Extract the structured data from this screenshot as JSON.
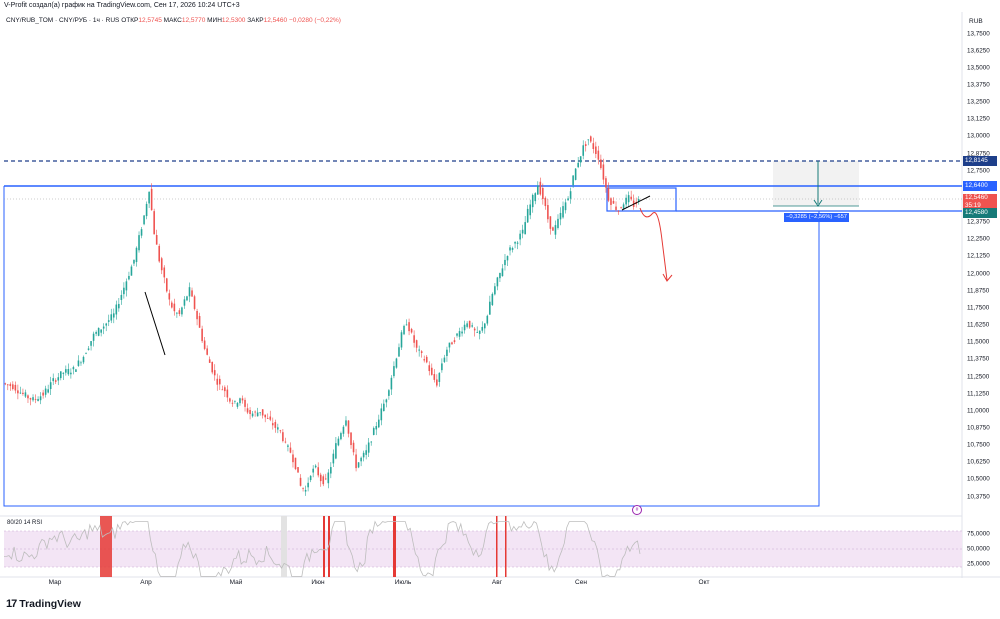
{
  "header": {
    "credit": "V-Profit создал(а) график на TradingView.com, Сен 17, 2026 10:24 UTC+3",
    "symbol": "CNY/RUB_TOM · CNY/РУБ · 1ч · RUS",
    "open_label": "ОТКР",
    "open_value": "12,5745",
    "high_label": "МАКС",
    "high_value": "12,5770",
    "low_label": "МИН",
    "low_value": "12,5300",
    "close_label": "ЗАКР",
    "close_value": "12,5460",
    "change": "−0,0280 (−0,22%)"
  },
  "currency": "RUB",
  "price_tags": {
    "dashed_level": "12,8145",
    "resistance": "12,6400",
    "last_price": "12,5460",
    "countdown": "35:19",
    "support": "12,4580"
  },
  "measure_label": "−0,3285 (−2,56%) −657",
  "marker_label": "#",
  "rsi": {
    "label": "80/20 14 RSI",
    "ticks": [
      "75,0000",
      "50,0000",
      "25,0000"
    ]
  },
  "logo": {
    "mark": "17",
    "text": "TradingView"
  },
  "colors": {
    "up": "#26a69a",
    "down": "#ef5350",
    "level_blue": "#2962ff",
    "dashed_blue": "#1e3f8a",
    "rsi_band": "#f3e5f5",
    "annotation": "#e53935"
  },
  "chart_data": {
    "type": "candlestick",
    "ylabel": "RUB",
    "y_ticks": [
      "13,7500",
      "13,6250",
      "13,5000",
      "13,3750",
      "13,2500",
      "13,1250",
      "13,0000",
      "12,8750",
      "12,7500",
      "12,6250",
      "12,5000",
      "12,3750",
      "12,2500",
      "12,1250",
      "12,0000",
      "11,8750",
      "11,7500",
      "11,6250",
      "11,5000",
      "11,3750",
      "11,2500",
      "11,1250",
      "11,0000",
      "10,8750",
      "10,7500",
      "10,6250",
      "10,5000",
      "10,3750"
    ],
    "ylim": [
      10.32,
      13.8
    ],
    "x_ticks": [
      "Мар",
      "Апр",
      "Май",
      "Июн",
      "Июль",
      "Авг",
      "Сен",
      "Окт"
    ],
    "price_path": [
      [
        0,
        11.2
      ],
      [
        4,
        11.18
      ],
      [
        8,
        11.12
      ],
      [
        12,
        11.08
      ],
      [
        16,
        11.12
      ],
      [
        20,
        11.22
      ],
      [
        24,
        11.28
      ],
      [
        28,
        11.3
      ],
      [
        32,
        11.4
      ],
      [
        36,
        11.55
      ],
      [
        40,
        11.62
      ],
      [
        44,
        11.7
      ],
      [
        48,
        11.9
      ],
      [
        52,
        12.1
      ],
      [
        56,
        12.42
      ],
      [
        58,
        12.62
      ],
      [
        60,
        12.3
      ],
      [
        62,
        12.1
      ],
      [
        64,
        11.95
      ],
      [
        66,
        11.8
      ],
      [
        68,
        11.72
      ],
      [
        70,
        11.7
      ],
      [
        72,
        11.8
      ],
      [
        74,
        11.88
      ],
      [
        76,
        11.75
      ],
      [
        78,
        11.6
      ],
      [
        80,
        11.45
      ],
      [
        82,
        11.35
      ],
      [
        84,
        11.25
      ],
      [
        86,
        11.18
      ],
      [
        88,
        11.15
      ],
      [
        90,
        11.08
      ],
      [
        92,
        11.05
      ],
      [
        94,
        11.1
      ],
      [
        96,
        11.02
      ],
      [
        98,
        10.98
      ],
      [
        100,
        10.98
      ],
      [
        102,
        11.0
      ],
      [
        104,
        10.95
      ],
      [
        106,
        10.92
      ],
      [
        108,
        10.88
      ],
      [
        110,
        10.85
      ],
      [
        112,
        10.75
      ],
      [
        114,
        10.7
      ],
      [
        116,
        10.6
      ],
      [
        118,
        10.45
      ],
      [
        120,
        10.42
      ],
      [
        122,
        10.55
      ],
      [
        124,
        10.58
      ],
      [
        126,
        10.5
      ],
      [
        128,
        10.48
      ],
      [
        130,
        10.6
      ],
      [
        132,
        10.75
      ],
      [
        134,
        10.85
      ],
      [
        136,
        10.95
      ],
      [
        138,
        10.75
      ],
      [
        140,
        10.6
      ],
      [
        142,
        10.65
      ],
      [
        144,
        10.7
      ],
      [
        146,
        10.8
      ],
      [
        148,
        10.9
      ],
      [
        150,
        11.0
      ],
      [
        152,
        11.1
      ],
      [
        154,
        11.25
      ],
      [
        156,
        11.4
      ],
      [
        158,
        11.55
      ],
      [
        160,
        11.65
      ],
      [
        162,
        11.55
      ],
      [
        164,
        11.45
      ],
      [
        166,
        11.4
      ],
      [
        168,
        11.35
      ],
      [
        170,
        11.25
      ],
      [
        172,
        11.2
      ],
      [
        174,
        11.35
      ],
      [
        176,
        11.45
      ],
      [
        178,
        11.5
      ],
      [
        180,
        11.55
      ],
      [
        182,
        11.6
      ],
      [
        184,
        11.65
      ],
      [
        186,
        11.6
      ],
      [
        188,
        11.55
      ],
      [
        190,
        11.6
      ],
      [
        192,
        11.7
      ],
      [
        194,
        11.85
      ],
      [
        196,
        11.95
      ],
      [
        198,
        12.05
      ],
      [
        200,
        12.15
      ],
      [
        202,
        12.2
      ],
      [
        204,
        12.25
      ],
      [
        206,
        12.3
      ],
      [
        208,
        12.45
      ],
      [
        210,
        12.55
      ],
      [
        212,
        12.65
      ],
      [
        214,
        12.55
      ],
      [
        216,
        12.4
      ],
      [
        218,
        12.3
      ],
      [
        220,
        12.38
      ],
      [
        222,
        12.48
      ],
      [
        224,
        12.55
      ],
      [
        226,
        12.7
      ],
      [
        228,
        12.82
      ],
      [
        230,
        12.92
      ],
      [
        232,
        12.98
      ],
      [
        234,
        12.92
      ],
      [
        236,
        12.85
      ],
      [
        238,
        12.7
      ],
      [
        240,
        12.55
      ],
      [
        242,
        12.5
      ],
      [
        244,
        12.46
      ],
      [
        246,
        12.52
      ],
      [
        248,
        12.55
      ],
      [
        250,
        12.5
      ],
      [
        252,
        12.53
      ]
    ],
    "levels": {
      "dashed": 12.8145,
      "resistance": 12.64,
      "last": 12.546,
      "support": 12.458
    }
  }
}
